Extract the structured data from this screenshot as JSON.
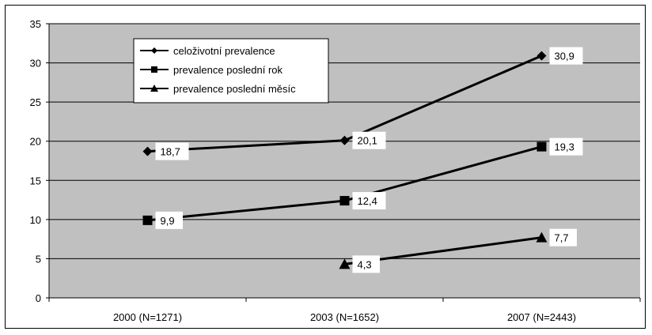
{
  "chart_data": {
    "type": "line",
    "categories": [
      "2000 (N=1271)",
      "2003 (N=1652)",
      "2007 (N=2443)"
    ],
    "ylim": [
      0,
      35
    ],
    "yticks": [
      "0",
      "5",
      "10",
      "15",
      "20",
      "25",
      "30",
      "35"
    ],
    "grid": true,
    "legend_position": "top-left",
    "plot_background": "#c0c0c0",
    "line_color": "#000000",
    "series": [
      {
        "name": "celoživotní prevalence",
        "marker": "diamond",
        "values": [
          18.7,
          20.1,
          30.9
        ],
        "labels": [
          "18,7",
          "20,1",
          "30,9"
        ]
      },
      {
        "name": "prevalence poslední rok",
        "marker": "square",
        "values": [
          9.9,
          12.4,
          19.3
        ],
        "labels": [
          "9,9",
          "12,4",
          "19,3"
        ]
      },
      {
        "name": "prevalence poslední měsíc",
        "marker": "triangle",
        "values": [
          null,
          4.3,
          7.7
        ],
        "labels": [
          "",
          "4,3",
          "7,7"
        ]
      }
    ]
  }
}
